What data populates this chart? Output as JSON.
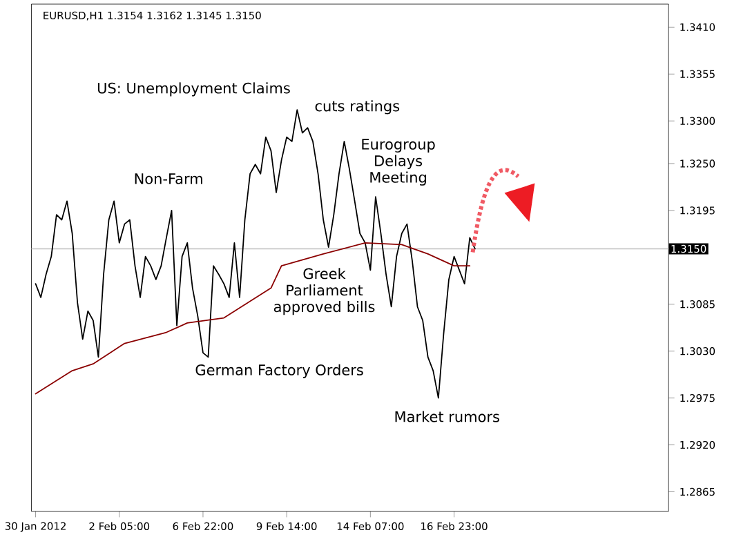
{
  "chart_data": {
    "type": "line",
    "title": "EURUSD,H1 1.3154 1.3162 1.3145 1.3150",
    "categories": [
      "30 Jan 2012",
      null,
      null,
      null,
      null,
      null,
      null,
      null,
      null,
      null,
      null,
      null,
      null,
      null,
      null,
      null,
      "2 Feb 05:00",
      null,
      null,
      null,
      null,
      null,
      null,
      null,
      null,
      null,
      null,
      null,
      null,
      null,
      null,
      null,
      "6 Feb 22:00",
      null,
      null,
      null,
      null,
      null,
      null,
      null,
      null,
      null,
      null,
      null,
      null,
      null,
      null,
      null,
      "9 Feb 14:00",
      null,
      null,
      null,
      null,
      null,
      null,
      null,
      null,
      null,
      null,
      null,
      null,
      null,
      null,
      null,
      "14 Feb 07:00",
      null,
      null,
      null,
      null,
      null,
      null,
      null,
      null,
      null,
      null,
      null,
      null,
      null,
      null,
      null,
      "16 Feb 23:00",
      null,
      null,
      null,
      null
    ],
    "series": [
      {
        "color": "#000000",
        "values": [
          1.3109,
          1.3093,
          1.312,
          1.3141,
          1.319,
          1.3184,
          1.3206,
          1.3168,
          1.3087,
          1.3044,
          1.3077,
          1.3066,
          1.3023,
          1.312,
          1.3184,
          1.3206,
          1.3157,
          1.3179,
          1.3184,
          1.313,
          1.3093,
          1.3141,
          1.313,
          1.3114,
          1.313,
          1.3163,
          1.3195,
          1.306,
          1.3141,
          1.3157,
          1.3104,
          1.3071,
          1.3028,
          1.3023,
          1.313,
          1.312,
          1.3109,
          1.3093,
          1.3157,
          1.3093,
          1.3184,
          1.3238,
          1.3249,
          1.3238,
          1.3281,
          1.3265,
          1.3216,
          1.3254,
          1.3281,
          1.3276,
          1.3313,
          1.3286,
          1.3292,
          1.3276,
          1.3238,
          1.3184,
          1.3152,
          1.319,
          1.3238,
          1.3276,
          1.3243,
          1.3206,
          1.3168,
          1.3157,
          1.3125,
          1.3211,
          1.3168,
          1.312,
          1.3082,
          1.3141,
          1.3168,
          1.3179,
          1.3136,
          1.3082,
          1.3066,
          1.3023,
          1.3007,
          1.2975,
          1.305,
          1.3114,
          1.3141,
          1.3125,
          1.3109,
          1.3163,
          1.315
        ]
      },
      {
        "color": "#8b0000",
        "values": [
          1.298,
          null,
          null,
          null,
          null,
          null,
          null,
          1.3007,
          null,
          null,
          null,
          1.3015,
          null,
          null,
          null,
          null,
          null,
          1.3039,
          null,
          null,
          null,
          null,
          null,
          null,
          null,
          1.3052,
          null,
          null,
          null,
          1.3063,
          null,
          null,
          null,
          null,
          null,
          null,
          1.3069,
          null,
          null,
          null,
          null,
          null,
          null,
          null,
          null,
          1.3104,
          null,
          1.313,
          null,
          null,
          null,
          null,
          null,
          null,
          null,
          1.3144,
          null,
          null,
          null,
          null,
          null,
          null,
          null,
          1.3157,
          null,
          null,
          null,
          null,
          null,
          null,
          1.3155,
          null,
          null,
          null,
          null,
          1.3144,
          null,
          null,
          null,
          null,
          1.313,
          null,
          null,
          1.313,
          null
        ]
      }
    ],
    "ylim": [
      1.2842,
      1.3437
    ],
    "yticks": [
      {
        "value": 1.341,
        "label": "1.3410"
      },
      1.3355,
      {
        "value": 1.33,
        "label": "1.3300"
      },
      {
        "value": 1.325,
        "label": "1.3250"
      },
      1.3195,
      1.3085,
      {
        "value": 1.303,
        "label": "1.3030"
      },
      1.2975,
      {
        "value": 1.292,
        "label": "1.2920"
      },
      1.2865
    ],
    "ref_lines": [
      {
        "axis": "y",
        "value": 1.315,
        "label": "1.3150",
        "color": "#c0c0c0"
      }
    ],
    "annotations": [
      "US: Unemployment Claims",
      "Non-Farm",
      "cuts ratings",
      "Eurogroup Delays Meeting",
      "Greek Parliament approved bills",
      "German Factory Orders",
      "Market rumors"
    ],
    "grid": false,
    "marker": "none",
    "line_style": "solid"
  }
}
